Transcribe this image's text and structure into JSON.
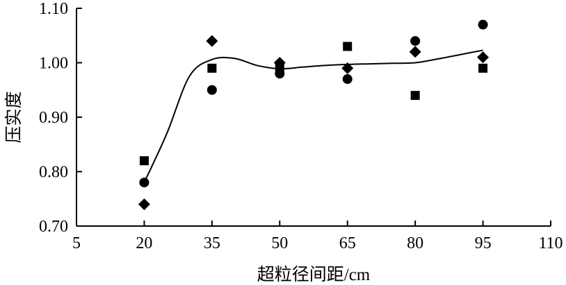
{
  "chart_data": {
    "type": "scatter",
    "title": "",
    "xlabel": "超粒径间距/cm",
    "ylabel": "压实度",
    "xlim": [
      5,
      110
    ],
    "ylim": [
      0.7,
      1.1
    ],
    "x_ticks": [
      5,
      20,
      35,
      50,
      65,
      80,
      95,
      110
    ],
    "x_tick_labels": [
      "5",
      "20",
      "35",
      "50",
      "65",
      "80",
      "95",
      "110"
    ],
    "y_ticks": [
      0.7,
      0.8,
      0.9,
      1.0,
      1.1
    ],
    "y_tick_labels": [
      "0.70",
      "0.80",
      "0.90",
      "1.00",
      "1.10"
    ],
    "grid": false,
    "legend": "none",
    "colors": {
      "axis": "#000000",
      "marker": "#000000",
      "background": "#ffffff"
    },
    "series": [
      {
        "marker": "circle",
        "x": [
          20,
          35,
          50,
          65,
          80,
          95
        ],
        "y": [
          0.78,
          0.95,
          0.98,
          0.97,
          1.04,
          1.07
        ]
      },
      {
        "marker": "square",
        "x": [
          20,
          35,
          50,
          65,
          80,
          95
        ],
        "y": [
          0.82,
          0.99,
          0.99,
          1.03,
          0.94,
          0.99
        ]
      },
      {
        "marker": "diamond",
        "x": [
          20,
          35,
          50,
          65,
          80,
          95
        ],
        "y": [
          0.74,
          1.04,
          1.0,
          0.99,
          1.02,
          1.01
        ]
      }
    ],
    "trend_line": {
      "style": "smooth",
      "x": [
        20,
        25,
        30,
        35,
        40,
        45,
        50,
        55,
        60,
        65,
        70,
        75,
        80,
        85,
        90,
        95
      ],
      "y": [
        0.78,
        0.87,
        0.975,
        1.006,
        1.008,
        0.995,
        0.989,
        0.992,
        0.995,
        0.997,
        0.998,
        0.999,
        1.0,
        1.007,
        1.015,
        1.023
      ]
    }
  }
}
